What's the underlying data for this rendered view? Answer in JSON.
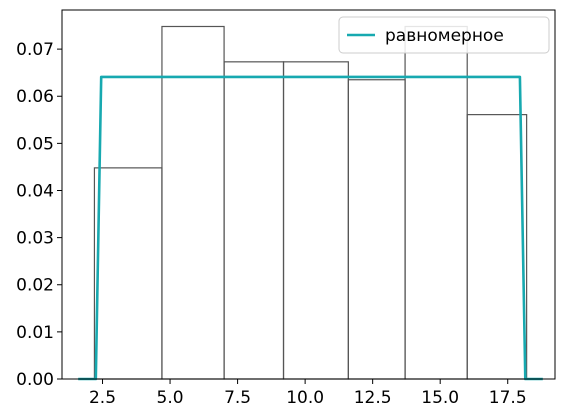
{
  "chart_data": {
    "type": "histogram-line",
    "xlim": [
      1.0,
      19.25
    ],
    "ylim": [
      0,
      0.0783
    ],
    "xticks": [
      2.5,
      5.0,
      7.5,
      10.0,
      12.5,
      15.0,
      17.5
    ],
    "xtick_labels": [
      "2.5",
      "5.0",
      "7.5",
      "10.0",
      "12.5",
      "15.0",
      "17.5"
    ],
    "yticks": [
      0,
      0.01,
      0.02,
      0.03,
      0.04,
      0.05,
      0.06,
      0.07
    ],
    "ytick_labels": [
      "0.00",
      "0.01",
      "0.02",
      "0.03",
      "0.04",
      "0.05",
      "0.06",
      "0.07"
    ],
    "bins": [
      {
        "x0": 2.2,
        "x1": 4.7,
        "value": 0.0448
      },
      {
        "x0": 4.7,
        "x1": 7.0,
        "value": 0.0748
      },
      {
        "x0": 7.0,
        "x1": 9.2,
        "value": 0.0673
      },
      {
        "x0": 9.2,
        "x1": 11.6,
        "value": 0.0673
      },
      {
        "x0": 11.6,
        "x1": 13.7,
        "value": 0.0635
      },
      {
        "x0": 13.7,
        "x1": 16.0,
        "value": 0.0748
      },
      {
        "x0": 16.0,
        "x1": 18.2,
        "value": 0.0561
      }
    ],
    "series": [
      {
        "name": "равномерное",
        "color": "#17a9b0",
        "x": [
          1.6,
          2.25,
          2.45,
          17.95,
          18.15,
          18.8
        ],
        "y": [
          0,
          0,
          0.0641,
          0.0641,
          0,
          0
        ]
      }
    ],
    "legend": {
      "placement": "top-right"
    },
    "bar_edge_color": "#555555",
    "grid": false
  }
}
